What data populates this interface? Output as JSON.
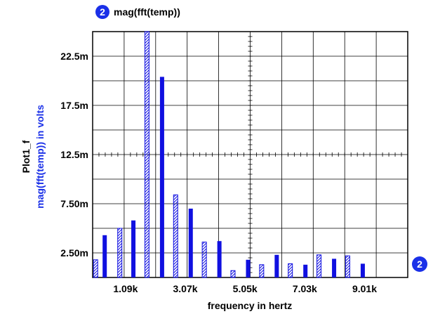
{
  "chart_data": {
    "type": "bar",
    "trace_marker": "2",
    "legend_label": "mag(fft(temp))",
    "ylabel_primary": "Plot1_f",
    "ylabel_secondary": "mag(fft(temp)) in volts",
    "xlabel": "frequency in hertz",
    "xlim": [
      0,
      10440
    ],
    "ylim": [
      0,
      25000
    ],
    "x_ticks": [
      {
        "value": 1090,
        "label": "1.09k"
      },
      {
        "value": 3070,
        "label": "3.07k"
      },
      {
        "value": 5050,
        "label": "5.05k"
      },
      {
        "value": 7030,
        "label": "7.03k"
      },
      {
        "value": 9010,
        "label": "9.01k"
      }
    ],
    "y_ticks": [
      {
        "value": 2500,
        "label": "2.50m"
      },
      {
        "value": 7500,
        "label": "7.50m"
      },
      {
        "value": 12500,
        "label": "12.5m"
      },
      {
        "value": 17500,
        "label": "17.5m"
      },
      {
        "value": 22500,
        "label": "22.5m"
      }
    ],
    "bars": [
      {
        "x": 100,
        "y": 1800,
        "style": "hatched"
      },
      {
        "x": 400,
        "y": 4300,
        "style": "solid"
      },
      {
        "x": 900,
        "y": 5000,
        "style": "hatched"
      },
      {
        "x": 1350,
        "y": 5800,
        "style": "solid"
      },
      {
        "x": 1800,
        "y": 25000,
        "style": "hatched"
      },
      {
        "x": 2300,
        "y": 20400,
        "style": "solid"
      },
      {
        "x": 2750,
        "y": 8400,
        "style": "hatched"
      },
      {
        "x": 3250,
        "y": 7000,
        "style": "solid"
      },
      {
        "x": 3700,
        "y": 3600,
        "style": "hatched"
      },
      {
        "x": 4200,
        "y": 3700,
        "style": "solid"
      },
      {
        "x": 4650,
        "y": 700,
        "style": "hatched"
      },
      {
        "x": 5150,
        "y": 1800,
        "style": "solid"
      },
      {
        "x": 5600,
        "y": 1300,
        "style": "hatched"
      },
      {
        "x": 6100,
        "y": 2300,
        "style": "solid"
      },
      {
        "x": 6550,
        "y": 1400,
        "style": "hatched"
      },
      {
        "x": 7050,
        "y": 1300,
        "style": "solid"
      },
      {
        "x": 7500,
        "y": 2300,
        "style": "hatched"
      },
      {
        "x": 8000,
        "y": 1900,
        "style": "solid"
      },
      {
        "x": 8450,
        "y": 2200,
        "style": "hatched"
      },
      {
        "x": 8950,
        "y": 1400,
        "style": "solid"
      }
    ],
    "grid": true,
    "colors": {
      "series": "#1010e0",
      "badge": "#1a30e8",
      "grid": "#000000"
    }
  }
}
